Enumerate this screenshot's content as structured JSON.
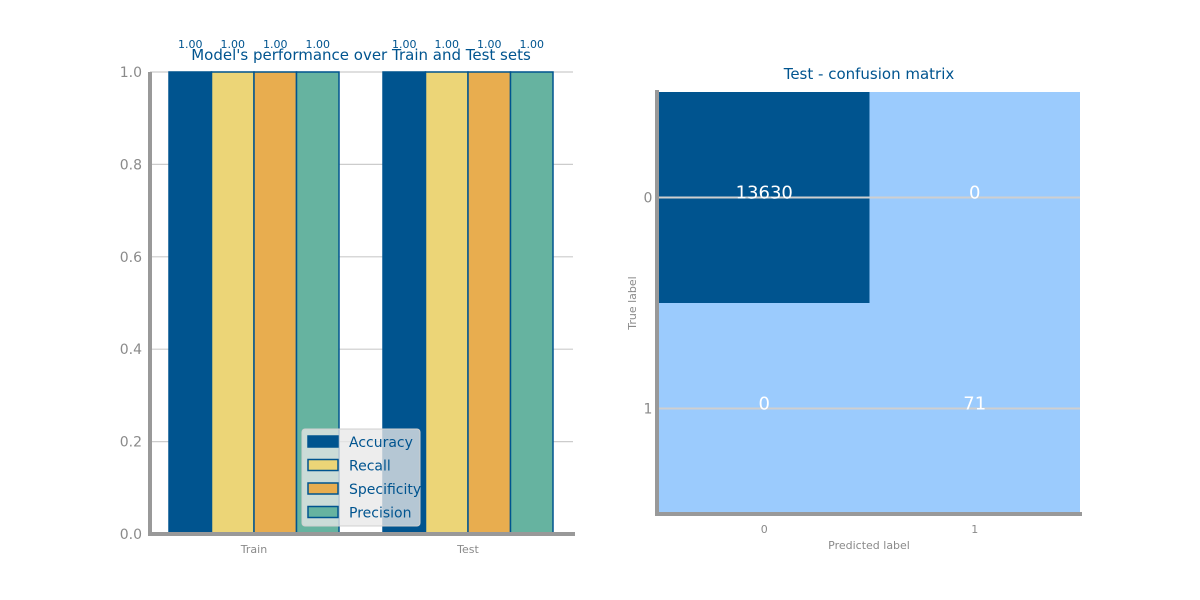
{
  "chart_data": [
    {
      "type": "bar",
      "title": "Model's performance over Train and Test sets",
      "categories": [
        "Train",
        "Test"
      ],
      "series": [
        {
          "name": "Accuracy",
          "values": [
            1.0,
            1.0
          ],
          "color": "#00548f"
        },
        {
          "name": "Recall",
          "values": [
            1.0,
            1.0
          ],
          "color": "#ecd577"
        },
        {
          "name": "Specificity",
          "values": [
            1.0,
            1.0
          ],
          "color": "#e8ad4f"
        },
        {
          "name": "Precision",
          "values": [
            1.0,
            1.0
          ],
          "color": "#66b3a0"
        }
      ],
      "data_labels": [
        "1.00",
        "1.00",
        "1.00",
        "1.00",
        "1.00",
        "1.00",
        "1.00",
        "1.00"
      ],
      "ylim": [
        0,
        1.0
      ],
      "yticks": [
        "0.0",
        "0.2",
        "0.4",
        "0.6",
        "0.8",
        "1.0"
      ],
      "grid": true,
      "legend": "lower-center"
    },
    {
      "type": "heatmap",
      "title": "Test - confusion matrix",
      "xlabel": "Predicted label",
      "ylabel": "True label",
      "x_ticks": [
        "0",
        "1"
      ],
      "y_ticks": [
        "0",
        "1"
      ],
      "values": [
        [
          13630,
          0
        ],
        [
          0,
          71
        ]
      ],
      "value_labels": [
        [
          "13630",
          "0"
        ],
        [
          "0",
          "71"
        ]
      ],
      "colors": {
        "high": "#00548f",
        "low": "#9bcbfd"
      }
    }
  ]
}
